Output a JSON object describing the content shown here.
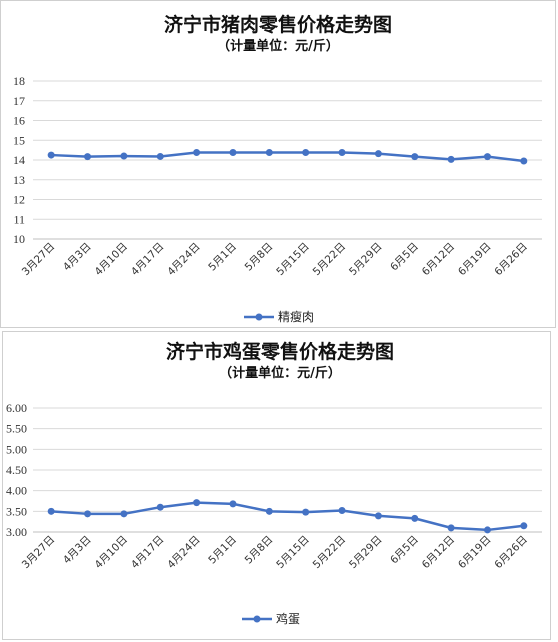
{
  "chart_data": [
    {
      "type": "line",
      "title": "济宁市猪肉零售价格走势图",
      "subtitle": "（计量单位：元/斤）",
      "categories": [
        "3月27日",
        "4月3日",
        "4月10日",
        "4月17日",
        "4月24日",
        "5月1日",
        "5月8日",
        "5月15日",
        "5月22日",
        "5月29日",
        "6月5日",
        "6月12日",
        "6月19日",
        "6月26日"
      ],
      "yticks": [
        "10",
        "11",
        "12",
        "13",
        "14",
        "15",
        "16",
        "17",
        "18"
      ],
      "ylim": [
        10,
        18
      ],
      "grid": true,
      "legend_position": "bottom",
      "series": [
        {
          "name": "精瘦肉",
          "color": "#4472c4",
          "values": [
            14.25,
            14.17,
            14.2,
            14.18,
            14.38,
            14.38,
            14.38,
            14.38,
            14.38,
            14.32,
            14.17,
            14.03,
            14.17,
            13.95
          ]
        }
      ]
    },
    {
      "type": "line",
      "title": "济宁市鸡蛋零售价格走势图",
      "subtitle": "（计量单位：元/斤）",
      "categories": [
        "3月27日",
        "4月3日",
        "4月10日",
        "4月17日",
        "4月24日",
        "5月1日",
        "5月8日",
        "5月15日",
        "5月22日",
        "5月29日",
        "6月5日",
        "6月12日",
        "6月19日",
        "6月26日"
      ],
      "yticks": [
        "3.00",
        "3.50",
        "4.00",
        "4.50",
        "5.00",
        "5.50",
        "6.00"
      ],
      "ylim": [
        3.0,
        6.0
      ],
      "grid": true,
      "legend_position": "bottom",
      "series": [
        {
          "name": "鸡蛋",
          "color": "#4472c4",
          "values": [
            3.5,
            3.44,
            3.44,
            3.6,
            3.71,
            3.68,
            3.5,
            3.48,
            3.52,
            3.39,
            3.33,
            3.1,
            3.05,
            3.15
          ]
        }
      ]
    }
  ]
}
